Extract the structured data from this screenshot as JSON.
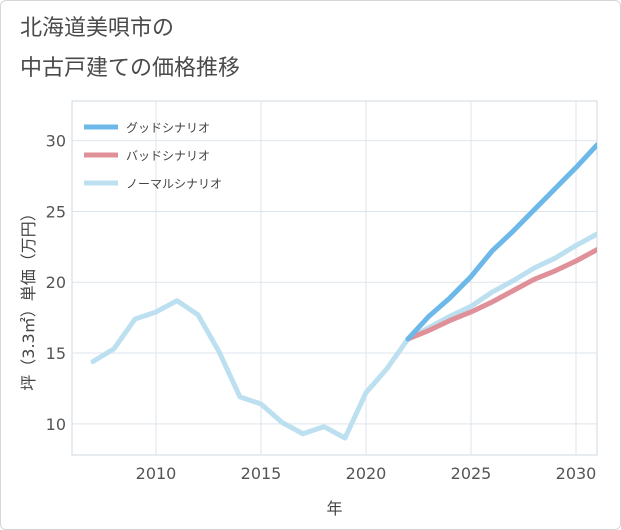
{
  "title_lines": [
    "北海道美唄市の",
    "中古戸建ての価格推移"
  ],
  "chart_data": {
    "type": "line",
    "xlabel": "年",
    "ylabel": "坪（3.3㎡）単価（万円）",
    "xlim": [
      2006,
      2031
    ],
    "ylim": [
      7.8,
      32.8
    ],
    "x_ticks": [
      2010,
      2015,
      2020,
      2025,
      2030
    ],
    "y_ticks": [
      10,
      15,
      20,
      25,
      30
    ],
    "grid": true,
    "legend_position": "top-left",
    "series": [
      {
        "name": "グッドシナリオ",
        "color": "#6cb8e8",
        "x": [
          2022,
          2023,
          2024,
          2025,
          2026,
          2027,
          2028,
          2029,
          2030,
          2031
        ],
        "y": [
          16.0,
          17.6,
          18.9,
          20.4,
          22.2,
          23.6,
          25.1,
          26.6,
          28.1,
          29.7
        ]
      },
      {
        "name": "バッドシナリオ",
        "color": "#e09098",
        "x": [
          2022,
          2023,
          2024,
          2025,
          2026,
          2027,
          2028,
          2029,
          2030,
          2031
        ],
        "y": [
          16.0,
          16.6,
          17.3,
          17.9,
          18.6,
          19.4,
          20.2,
          20.8,
          21.5,
          22.3
        ]
      },
      {
        "name": "ノーマルシナリオ",
        "color": "#bde0f0",
        "x": [
          2007,
          2008,
          2009,
          2010,
          2011,
          2012,
          2013,
          2014,
          2015,
          2016,
          2017,
          2018,
          2019,
          2020,
          2021,
          2022,
          2023,
          2024,
          2025,
          2026,
          2027,
          2028,
          2029,
          2030,
          2031
        ],
        "y": [
          14.4,
          15.3,
          17.4,
          17.9,
          18.7,
          17.7,
          15.1,
          11.9,
          11.4,
          10.1,
          9.3,
          9.8,
          9.0,
          12.2,
          13.9,
          16.0,
          16.8,
          17.6,
          18.3,
          19.3,
          20.1,
          21.0,
          21.7,
          22.6,
          23.4
        ]
      }
    ]
  }
}
